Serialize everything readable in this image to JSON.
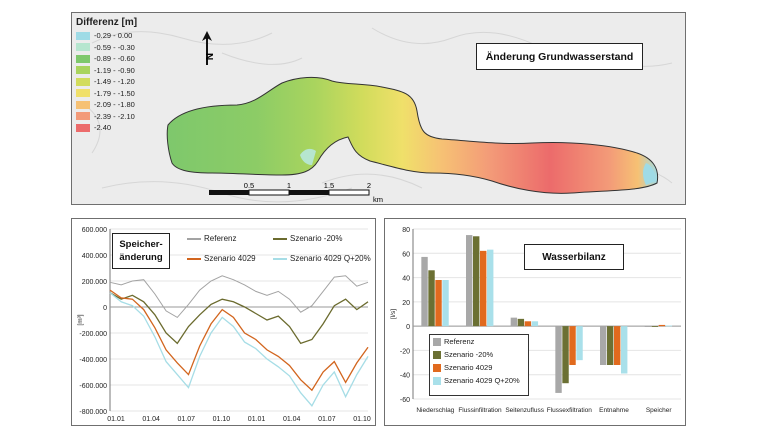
{
  "map": {
    "legend_title": "Differenz [m]",
    "legend": [
      {
        "label": "-0.29 - 0.00",
        "color": "#9fdbe6"
      },
      {
        "label": "-0.59 - -0.30",
        "color": "#b6e6cf"
      },
      {
        "label": "-0.89 - -0.60",
        "color": "#7ec86c"
      },
      {
        "label": "-1.19 - -0.90",
        "color": "#a9d45e"
      },
      {
        "label": "-1.49 - -1.20",
        "color": "#d2dc5c"
      },
      {
        "label": "-1.79 - -1.50",
        "color": "#f0e06a"
      },
      {
        "label": "-2.09 - -1.80",
        "color": "#f6c174"
      },
      {
        "label": "-2.39 - -2.10",
        "color": "#f39a78"
      },
      {
        "label": "-2.40",
        "color": "#ec6b6b"
      }
    ],
    "title": "Änderung Grundwasserstand",
    "north_label": "N",
    "scale_labels": [
      "0.5",
      "1",
      "1.5",
      "2"
    ],
    "scale_unit": "km"
  },
  "storage": {
    "title_line1": "Speicher-",
    "title_line2": "änderung",
    "legend": [
      {
        "label": "Referenz",
        "color": "#a3a3a3"
      },
      {
        "label": "Szenario -20%",
        "color": "#6b6b2e"
      },
      {
        "label": "Szenario 4029",
        "color": "#d2651e"
      },
      {
        "label": "Szenario 4029 Q+20%",
        "color": "#a6dde6"
      }
    ]
  },
  "balance": {
    "title": "Wasserbilanz",
    "ylabel": "[l/s]",
    "legend": [
      {
        "label": "Referenz",
        "color": "#a8a8a8"
      },
      {
        "label": "Szenario -20%",
        "color": "#6b7033"
      },
      {
        "label": "Szenario 4029",
        "color": "#e16a1e"
      },
      {
        "label": "Szenario 4029 Q+20%",
        "color": "#a9e0ea"
      }
    ]
  },
  "chart_data": [
    {
      "type": "line",
      "title": "Speicheränderung",
      "ylabel": "[m³]",
      "ylim": [
        -800000,
        600000
      ],
      "yticks": [
        600000,
        400000,
        200000,
        0,
        -200000,
        -400000,
        -600000,
        -800000
      ],
      "ytick_labels": [
        "600.000",
        "400.000",
        "200.000",
        "0",
        "-200.000",
        "-400.000",
        "-600.000",
        "-800.000"
      ],
      "xtick_labels": [
        "01.01",
        "01.04",
        "01.07",
        "01.10",
        "01.01",
        "01.04",
        "01.07",
        "01.10"
      ],
      "x_months": [
        0,
        1,
        2,
        3,
        4,
        5,
        6,
        7,
        8,
        9,
        10,
        11,
        12,
        13,
        14,
        15,
        16,
        17,
        18,
        19,
        20,
        21,
        22,
        23
      ],
      "series": [
        {
          "name": "Referenz",
          "values": [
            190000,
            170000,
            200000,
            210000,
            100000,
            -30000,
            -80000,
            20000,
            130000,
            200000,
            240000,
            210000,
            170000,
            120000,
            90000,
            120000,
            60000,
            -40000,
            10000,
            120000,
            230000,
            240000,
            160000,
            190000
          ]
        },
        {
          "name": "Szenario -20%",
          "values": [
            110000,
            60000,
            90000,
            40000,
            -60000,
            -200000,
            -280000,
            -150000,
            -60000,
            20000,
            60000,
            40000,
            0,
            -50000,
            -100000,
            -70000,
            -150000,
            -280000,
            -250000,
            -130000,
            10000,
            60000,
            -20000,
            40000
          ]
        },
        {
          "name": "Szenario 4029",
          "values": [
            130000,
            70000,
            60000,
            -20000,
            -160000,
            -330000,
            -430000,
            -520000,
            -300000,
            -130000,
            -20000,
            -80000,
            -200000,
            -250000,
            -330000,
            -380000,
            -450000,
            -560000,
            -640000,
            -500000,
            -420000,
            -580000,
            -430000,
            -310000
          ]
        },
        {
          "name": "Szenario 4029 Q+20%",
          "values": [
            110000,
            40000,
            10000,
            -70000,
            -230000,
            -420000,
            -520000,
            -620000,
            -380000,
            -200000,
            -80000,
            -150000,
            -270000,
            -320000,
            -400000,
            -460000,
            -530000,
            -660000,
            -760000,
            -600000,
            -500000,
            -690000,
            -520000,
            -380000
          ]
        }
      ]
    },
    {
      "type": "bar",
      "title": "Wasserbilanz",
      "ylabel": "[l/s]",
      "ylim": [
        -60,
        80
      ],
      "yticks": [
        80,
        60,
        40,
        20,
        0,
        -20,
        -40,
        -60
      ],
      "categories": [
        "Niederschlag",
        "Flussinfiltration",
        "Seitenzufluss",
        "Flussexfiltration",
        "Entnahme",
        "Speicher"
      ],
      "series": [
        {
          "name": "Referenz",
          "values": [
            57,
            75,
            7,
            -55,
            -32,
            0
          ]
        },
        {
          "name": "Szenario -20%",
          "values": [
            46,
            74,
            6,
            -47,
            -32,
            0
          ]
        },
        {
          "name": "Szenario 4029",
          "values": [
            38,
            62,
            4,
            -32,
            -32,
            1
          ]
        },
        {
          "name": "Szenario 4029 Q+20%",
          "values": [
            38,
            63,
            4,
            -28,
            -39,
            0.5
          ]
        }
      ]
    }
  ]
}
